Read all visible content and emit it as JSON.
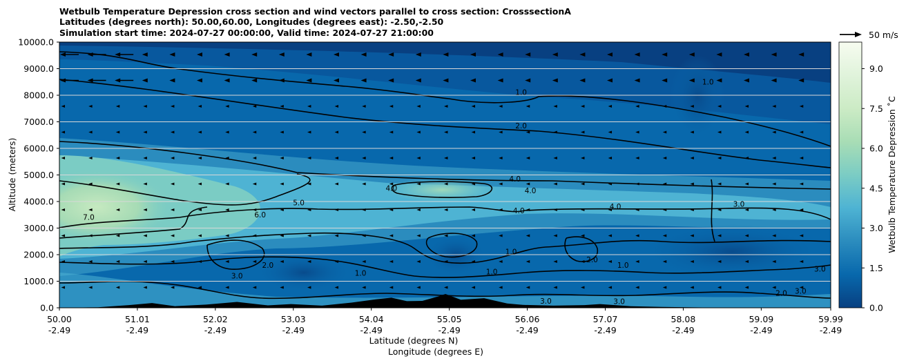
{
  "chart_data": {
    "type": "heatmap",
    "title_lines": [
      "Wetbulb Temperature Depression cross section and wind vectors parallel to cross section: CrosssectionA",
      "Latitudes (degrees north): 50.00,60.00, Longitudes (degrees east): -2.50,-2.50",
      "Simulation start time: 2024-07-27 00:00:00, Valid time: 2024-07-27 21:00:00"
    ],
    "xlabel_lines": [
      "Latitude (degrees N)",
      "Longitude (degrees E)"
    ],
    "ylabel": "Altitude (meters)",
    "x_ticks": [
      {
        "lat": "50.00",
        "lon": "-2.49"
      },
      {
        "lat": "51.01",
        "lon": "-2.49"
      },
      {
        "lat": "52.02",
        "lon": "-2.49"
      },
      {
        "lat": "53.03",
        "lon": "-2.49"
      },
      {
        "lat": "54.04",
        "lon": "-2.49"
      },
      {
        "lat": "55.05",
        "lon": "-2.49"
      },
      {
        "lat": "56.06",
        "lon": "-2.49"
      },
      {
        "lat": "57.07",
        "lon": "-2.49"
      },
      {
        "lat": "58.08",
        "lon": "-2.49"
      },
      {
        "lat": "59.09",
        "lon": "-2.49"
      },
      {
        "lat": "59.99",
        "lon": "-2.49"
      }
    ],
    "xlim": [
      50.0,
      59.99
    ],
    "ylim": [
      0,
      10000
    ],
    "y_ticks": [
      "0.0",
      "1000.0",
      "2000.0",
      "3000.0",
      "4000.0",
      "5000.0",
      "6000.0",
      "7000.0",
      "8000.0",
      "9000.0",
      "10000.0"
    ],
    "grid": "horizontal",
    "colorbar": {
      "label": "Wetbulb Temperature Depression ˚C",
      "ticks": [
        "0.0",
        "1.5",
        "3.0",
        "4.5",
        "6.0",
        "7.5",
        "9.0"
      ],
      "range": [
        0,
        10
      ],
      "colormap": "GnBu_r",
      "colors": [
        "#084081",
        "#0868ac",
        "#2b8cbe",
        "#4eb3d3",
        "#7bccc4",
        "#a8ddb5",
        "#ccebc5",
        "#e0f3db",
        "#f7fcf0"
      ]
    },
    "wind_key": "50 m/s",
    "contour_labels": [
      {
        "value": "1.0",
        "lat": 55.98,
        "alt": 8100
      },
      {
        "value": "1.0",
        "lat": 58.4,
        "alt": 8500
      },
      {
        "value": "2.0",
        "lat": 55.98,
        "alt": 6850
      },
      {
        "value": "4.0",
        "lat": 55.9,
        "alt": 4850
      },
      {
        "value": "4.0",
        "lat": 56.1,
        "alt": 4400
      },
      {
        "value": "4.0",
        "lat": 55.95,
        "alt": 3650
      },
      {
        "value": "4.0",
        "lat": 54.3,
        "alt": 4500
      },
      {
        "value": "4.0",
        "lat": 57.2,
        "alt": 3800
      },
      {
        "value": "5.0",
        "lat": 53.1,
        "alt": 3950
      },
      {
        "value": "6.0",
        "lat": 52.6,
        "alt": 3500
      },
      {
        "value": "7.0",
        "lat": 50.38,
        "alt": 3400
      },
      {
        "value": "3.0",
        "lat": 58.8,
        "alt": 3900
      },
      {
        "value": "2.0",
        "lat": 52.7,
        "alt": 1600
      },
      {
        "value": "3.0",
        "lat": 52.3,
        "alt": 1200
      },
      {
        "value": "1.0",
        "lat": 53.9,
        "alt": 1300
      },
      {
        "value": "1.0",
        "lat": 55.85,
        "alt": 2100
      },
      {
        "value": "1.0",
        "lat": 55.6,
        "alt": 1350
      },
      {
        "value": "2.0",
        "lat": 56.9,
        "alt": 1800
      },
      {
        "value": "1.0",
        "lat": 57.3,
        "alt": 1600
      },
      {
        "value": "3.0",
        "lat": 59.85,
        "alt": 1450
      },
      {
        "value": "2.0",
        "lat": 59.35,
        "alt": 550
      },
      {
        "value": "3.0",
        "lat": 59.6,
        "alt": 620
      },
      {
        "value": "1.0",
        "lat": 60.1,
        "alt": 350
      },
      {
        "value": "3.0",
        "lat": 56.3,
        "alt": 250
      },
      {
        "value": "3.0",
        "lat": 57.25,
        "alt": 240
      }
    ],
    "terrain": [
      [
        50.0,
        0
      ],
      [
        50.5,
        20
      ],
      [
        50.9,
        100
      ],
      [
        51.2,
        180
      ],
      [
        51.5,
        60
      ],
      [
        51.9,
        120
      ],
      [
        52.3,
        220
      ],
      [
        52.7,
        90
      ],
      [
        53.0,
        140
      ],
      [
        53.4,
        80
      ],
      [
        53.8,
        200
      ],
      [
        54.1,
        320
      ],
      [
        54.3,
        380
      ],
      [
        54.5,
        250
      ],
      [
        54.7,
        260
      ],
      [
        54.9,
        420
      ],
      [
        55.0,
        520
      ],
      [
        55.2,
        300
      ],
      [
        55.5,
        360
      ],
      [
        55.8,
        160
      ],
      [
        56.0,
        110
      ],
      [
        56.4,
        80
      ],
      [
        56.8,
        100
      ],
      [
        57.0,
        140
      ],
      [
        57.4,
        60
      ],
      [
        57.8,
        30
      ],
      [
        58.4,
        10
      ],
      [
        59.0,
        0
      ],
      [
        59.99,
        0
      ]
    ]
  }
}
